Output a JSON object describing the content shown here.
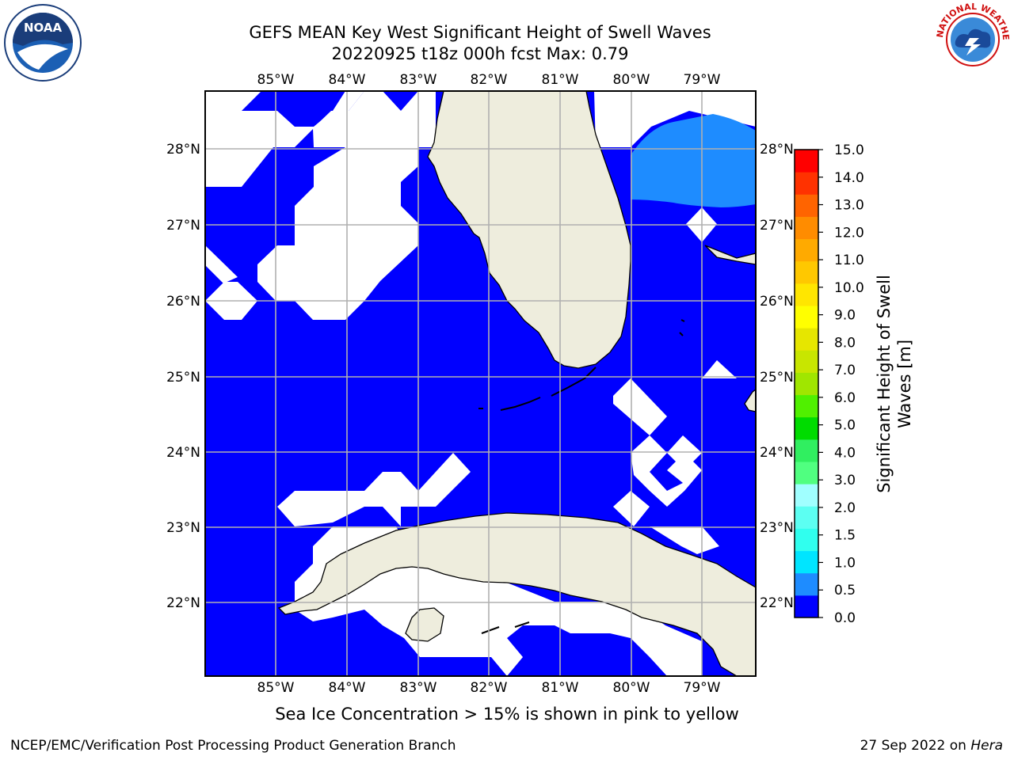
{
  "title": {
    "line1": "GEFS MEAN Key West Significant Height of Swell Waves",
    "line2": "20220925 t18z 000h fcst   Max: 0.79"
  },
  "map": {
    "lon_labels": [
      "85°W",
      "84°W",
      "83°W",
      "82°W",
      "81°W",
      "80°W",
      "79°W"
    ],
    "lat_labels": [
      "28°N",
      "27°N",
      "26°N",
      "25°N",
      "24°N",
      "23°N",
      "22°N"
    ],
    "ocean_color": "#0000ff",
    "land_color": "#eeeddd",
    "swell_color": "#1e8cff",
    "gridlines": true,
    "extent": {
      "lon_min": -86.0,
      "lon_max": -78.25,
      "lat_min": 21.0,
      "lat_max": 28.75
    }
  },
  "colorbar": {
    "label": "Significant Height of Swell Waves [m]",
    "label_line1": "Significant Height of Swell",
    "label_line2": "Waves [m]",
    "ticks": [
      "15.0",
      "14.0",
      "13.0",
      "12.0",
      "11.0",
      "10.0",
      "9.0",
      "8.0",
      "7.0",
      "6.0",
      "5.0",
      "4.0",
      "3.0",
      "2.0",
      "1.5",
      "1.0",
      "0.5",
      "0.0"
    ],
    "colors": [
      "#0000ff",
      "#1e8cff",
      "#00e5ff",
      "#30ffee",
      "#5cfff2",
      "#a0ffff",
      "#50ff80",
      "#30ef60",
      "#00dc00",
      "#50f000",
      "#a0e600",
      "#c8e600",
      "#e6e600",
      "#ffff00",
      "#ffe600",
      "#ffc800",
      "#ffaa00",
      "#ff8c00",
      "#ff6400",
      "#ff3200",
      "#ff0000"
    ]
  },
  "note": "Sea Ice Concentration > 15% is shown in pink to yellow",
  "footer": {
    "left": "NCEP/EMC/Verification Post Processing Product Generation Branch",
    "right_date": "27 Sep 2022 on ",
    "right_host": "Hera"
  },
  "logos": {
    "noaa_text": "NOAA",
    "nws_text": "NATIONAL WEATHER SERVICE"
  }
}
